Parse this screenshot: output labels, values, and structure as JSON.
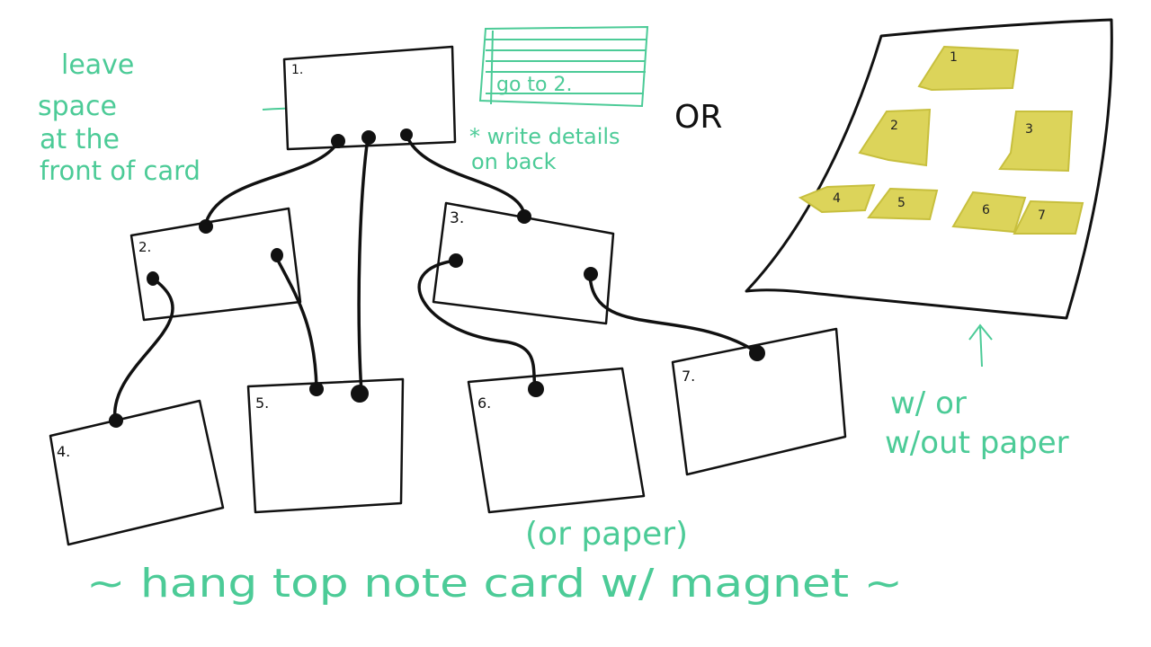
{
  "left_note": [
    "leave",
    "space",
    "at the",
    "front of card"
  ],
  "card_label_1": "1.",
  "card_label_2": "2.",
  "card_label_3": "3.",
  "card_label_4": "4.",
  "card_label_5": "5.",
  "card_label_6": "6.",
  "card_label_7": "7.",
  "back_card_text": "go to 2.",
  "back_note": [
    "* write details",
    "on back"
  ],
  "or_label": "OR",
  "sticky_labels": [
    "1",
    "2",
    "3",
    "4",
    "5",
    "6",
    "7"
  ],
  "paper_note": [
    "w/ or",
    "w/out paper"
  ],
  "bottom_aside": "(or paper)",
  "bottom_caption": "~ hang top note card w/ magnet ~",
  "colors": {
    "ink": "#111111",
    "green": "#4ccb97",
    "sticky": "#dcd45a"
  }
}
